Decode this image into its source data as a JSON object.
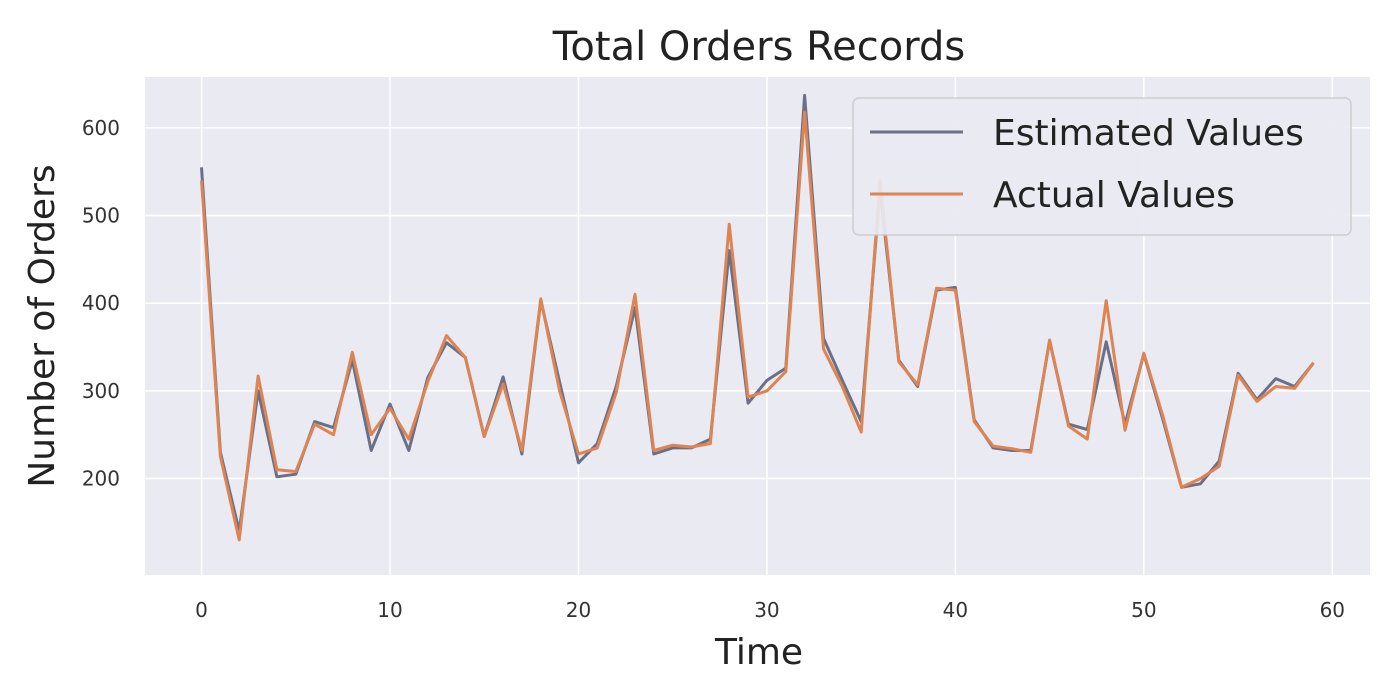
{
  "chart_data": {
    "type": "line",
    "title": "Total Orders Records",
    "xlabel": "Time",
    "ylabel": "Number of Orders",
    "xlim": [
      -3,
      62
    ],
    "ylim": [
      90,
      658
    ],
    "xticks": [
      0,
      10,
      20,
      30,
      40,
      50,
      60
    ],
    "yticks": [
      200,
      300,
      400,
      500,
      600
    ],
    "grid": true,
    "legend_position": "top-right",
    "x": [
      0,
      1,
      2,
      3,
      4,
      5,
      6,
      7,
      8,
      9,
      10,
      11,
      12,
      13,
      14,
      15,
      16,
      17,
      18,
      19,
      20,
      21,
      22,
      23,
      24,
      25,
      26,
      27,
      28,
      29,
      30,
      31,
      32,
      33,
      34,
      35,
      36,
      37,
      38,
      39,
      40,
      41,
      42,
      43,
      44,
      45,
      46,
      47,
      48,
      49,
      50,
      51,
      52,
      53,
      54,
      55,
      56,
      57,
      58,
      59
    ],
    "series": [
      {
        "name": "Estimated Values",
        "color": "#6b7087",
        "values": [
          555,
          230,
          140,
          300,
          202,
          205,
          265,
          258,
          335,
          232,
          285,
          232,
          315,
          355,
          338,
          248,
          316,
          228,
          403,
          310,
          218,
          240,
          305,
          395,
          228,
          235,
          235,
          245,
          460,
          286,
          312,
          326,
          637,
          360,
          312,
          265,
          530,
          335,
          305,
          415,
          418,
          267,
          235,
          232,
          232,
          357,
          262,
          256,
          356,
          262,
          342,
          268,
          190,
          194,
          220,
          320,
          290,
          314,
          305,
          332
        ]
      },
      {
        "name": "Actual Values",
        "color": "#dd8452",
        "values": [
          540,
          225,
          130,
          317,
          210,
          208,
          262,
          250,
          344,
          250,
          280,
          245,
          310,
          363,
          338,
          248,
          308,
          232,
          405,
          300,
          228,
          235,
          298,
          410,
          232,
          238,
          236,
          240,
          490,
          293,
          300,
          322,
          618,
          348,
          305,
          253,
          540,
          333,
          307,
          417,
          415,
          265,
          237,
          234,
          230,
          358,
          260,
          245,
          403,
          255,
          343,
          272,
          190,
          200,
          214,
          318,
          288,
          305,
          303,
          332
        ]
      }
    ]
  }
}
